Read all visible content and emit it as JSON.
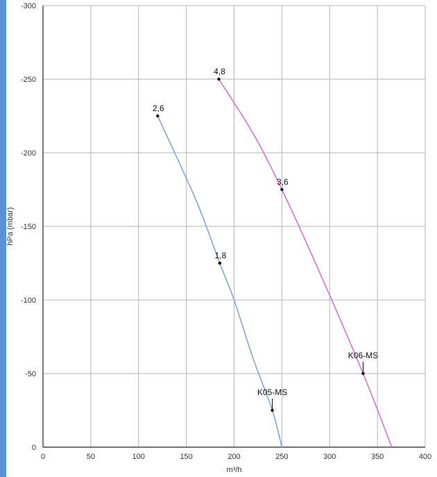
{
  "colors": {
    "left_bar": "#5b8fd6",
    "grid": "#b5b5b5",
    "axis": "#222222",
    "point": "#000000"
  },
  "chart_data": {
    "type": "line",
    "title": "",
    "xlabel": "m³/h",
    "ylabel": "hPa (mbar)",
    "xlim": [
      0,
      400
    ],
    "ylim": [
      0,
      -300
    ],
    "x_ticks": [
      0,
      50,
      100,
      150,
      200,
      250,
      300,
      350,
      400
    ],
    "y_ticks": [
      0,
      -50,
      -100,
      -150,
      -200,
      -250,
      -300
    ],
    "grid": true,
    "legend": "none",
    "series": [
      {
        "name": "K05-MS",
        "color": "#7ea8dc",
        "points": [
          [
            120,
            -225
          ],
          [
            160,
            -168
          ],
          [
            185,
            -125
          ],
          [
            200,
            -100
          ],
          [
            220,
            -60
          ],
          [
            240,
            -25
          ],
          [
            250,
            0
          ]
        ]
      },
      {
        "name": "K06-MS",
        "color": "#d872d2",
        "points": [
          [
            184,
            -250
          ],
          [
            220,
            -213
          ],
          [
            250,
            -175
          ],
          [
            290,
            -118
          ],
          [
            335,
            -50
          ],
          [
            365,
            0
          ]
        ]
      }
    ],
    "markers": [
      {
        "x": 120,
        "y": -225,
        "label": "2,6"
      },
      {
        "x": 185,
        "y": -125,
        "label": "1,8"
      },
      {
        "x": 184,
        "y": -250,
        "label": "4,8"
      },
      {
        "x": 250,
        "y": -175,
        "label": "3,6"
      }
    ],
    "annotations": [
      {
        "x": 240,
        "y": -25,
        "label": "K05-MS"
      },
      {
        "x": 335,
        "y": -50,
        "label": "K06-MS"
      }
    ]
  }
}
